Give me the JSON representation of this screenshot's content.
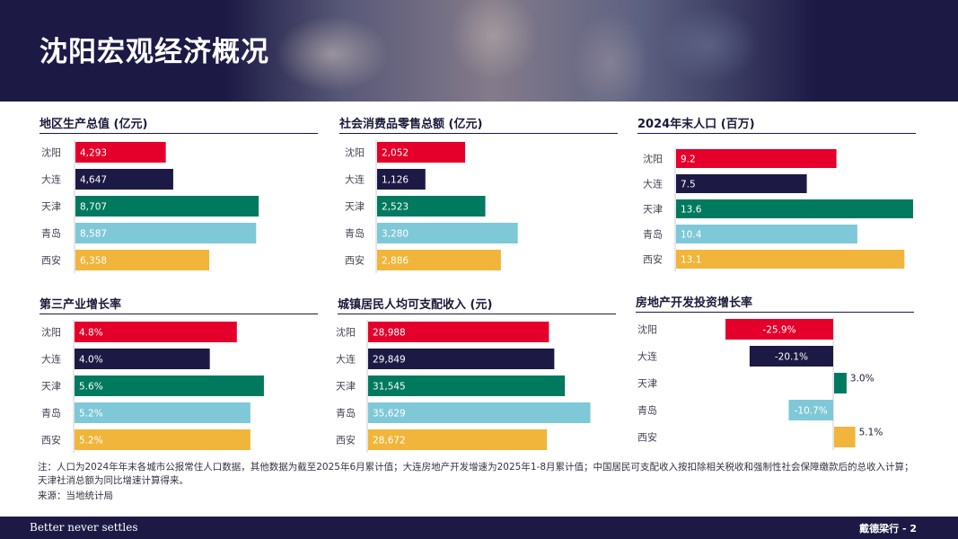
{
  "header": {
    "title": "沈阳宏观经济概况"
  },
  "colors": {
    "沈阳": "#e4002b",
    "大连": "#1c1a45",
    "天津": "#007a5e",
    "青岛": "#7ec8d8",
    "西安": "#f0b53a",
    "navy": "#1c1a45"
  },
  "chart_data": [
    {
      "id": "gdp",
      "type": "bar",
      "orientation": "horizontal",
      "title": "地区生产总值 (亿元)",
      "categories": [
        "沈阳",
        "大连",
        "天津",
        "青岛",
        "西安"
      ],
      "values": [
        4293,
        4647,
        8707,
        8587,
        6358
      ],
      "labels": [
        "4,293",
        "4,647",
        "8,707",
        "8,587",
        "6,358"
      ],
      "xlim": [
        0,
        9000
      ]
    },
    {
      "id": "retail",
      "type": "bar",
      "orientation": "horizontal",
      "title": "社会消费品零售总额 (亿元)",
      "categories": [
        "沈阳",
        "大连",
        "天津",
        "青岛",
        "西安"
      ],
      "values": [
        2052,
        1126,
        2523,
        3280,
        2886
      ],
      "labels": [
        "2,052",
        "1,126",
        "2,523",
        "3,280",
        "2,886"
      ],
      "xlim": [
        0,
        4500
      ]
    },
    {
      "id": "population",
      "type": "bar",
      "orientation": "horizontal",
      "title": "2024年末人口 (百万)",
      "categories": [
        "沈阳",
        "大连",
        "天津",
        "青岛",
        "西安"
      ],
      "values": [
        9.2,
        7.5,
        13.6,
        10.4,
        13.1
      ],
      "labels": [
        "9.2",
        "7.5",
        "13.6",
        "10.4",
        "13.1"
      ],
      "xlim": [
        0,
        13.6
      ]
    },
    {
      "id": "tertiary",
      "type": "bar",
      "orientation": "horizontal",
      "title": "第三产业增长率",
      "categories": [
        "沈阳",
        "大连",
        "天津",
        "青岛",
        "西安"
      ],
      "values": [
        4.8,
        4.0,
        5.6,
        5.2,
        5.2
      ],
      "labels": [
        "4.8%",
        "4.0%",
        "5.6%",
        "5.2%",
        "5.2%"
      ],
      "xlim": [
        0,
        6
      ]
    },
    {
      "id": "income",
      "type": "bar",
      "orientation": "horizontal",
      "title": "城镇居民人均可支配收入 (元)",
      "categories": [
        "沈阳",
        "大连",
        "天津",
        "青岛",
        "西安"
      ],
      "values": [
        28988,
        29849,
        31545,
        35629,
        28672
      ],
      "labels": [
        "28,988",
        "29,849",
        "31,545",
        "35,629",
        "28,672"
      ],
      "xlim": [
        0,
        38000
      ]
    },
    {
      "id": "realestate",
      "type": "bar",
      "orientation": "horizontal",
      "title": "房地产开发投资增长率",
      "categories": [
        "沈阳",
        "大连",
        "天津",
        "青岛",
        "西安"
      ],
      "values": [
        -25.9,
        -20.1,
        3.0,
        -10.7,
        5.1
      ],
      "labels": [
        "-25.9%",
        "-20.1%",
        "3.0%",
        "-10.7%",
        "5.1%"
      ],
      "xlim": [
        -40,
        20
      ]
    }
  ],
  "notes": {
    "note": "注：人口为2024年年末各城市公报常住人口数据，其他数据为截至2025年6月累计值；大连房地产开发增速为2025年1-8月累计值；中国居民可支配收入按扣除相关税收和强制性社会保障缴款后的总收入计算；天津社消总额为同比增速计算得来。",
    "source": "来源：当地统计局"
  },
  "footer": {
    "tagline": "Better never settles",
    "brand": "戴德梁行 - 2"
  }
}
